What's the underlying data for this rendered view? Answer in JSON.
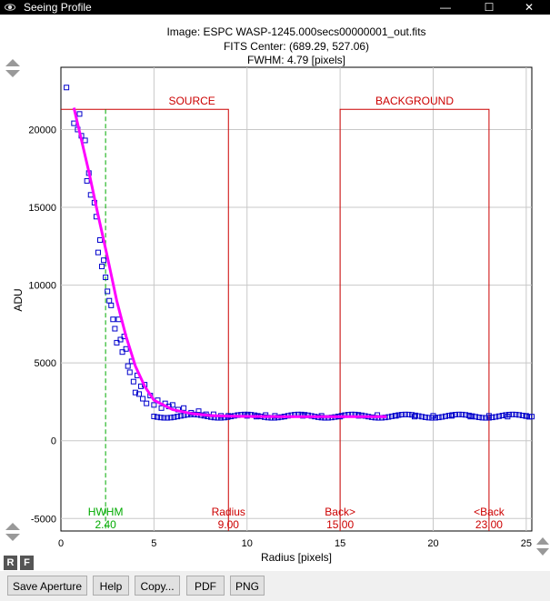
{
  "window": {
    "title": "Seeing Profile",
    "minimize": "—",
    "maximize": "☐",
    "close": "✕"
  },
  "header": {
    "image": "Image: ESPC WASP-1245.000secs00000001_out.fits",
    "center": "FITS Center: (689.29,  527.06)",
    "fwhm": "FWHM: 4.79 [pixels]"
  },
  "rf_labels": {
    "r": "R",
    "f": "F"
  },
  "buttons": {
    "save": "Save Aperture",
    "help": "Help",
    "copy": "Copy...",
    "pdf": "PDF",
    "png": "PNG"
  },
  "colors": {
    "points": "#0000cc",
    "fit": "#ff00ff",
    "aperture": "#cc0000",
    "hwhm": "#00aa00"
  },
  "chart_data": {
    "type": "scatter",
    "xlabel": "Radius [pixels]",
    "ylabel": "ADU",
    "xlim": [
      0,
      25.3
    ],
    "ylim": [
      -5800,
      24000
    ],
    "xticks": [
      0,
      5,
      10,
      15,
      20,
      25
    ],
    "yticks": [
      -5000,
      0,
      5000,
      10000,
      15000,
      20000
    ],
    "grid": true,
    "series": [
      {
        "kind": "points",
        "x": [
          0.3,
          0.7,
          0.9,
          1.0,
          1.1,
          1.3,
          1.4,
          1.5,
          1.6,
          1.8,
          1.9,
          2.0,
          2.1,
          2.2,
          2.3,
          2.4,
          2.5,
          2.6,
          2.7,
          2.8,
          2.9,
          3.0,
          3.1,
          3.2,
          3.3,
          3.4,
          3.5,
          3.6,
          3.7,
          3.8,
          3.9,
          4.0,
          4.1,
          4.2,
          4.3,
          4.4,
          4.5,
          4.6,
          4.8,
          5.0,
          5.2,
          5.4,
          5.6,
          5.8,
          6.0,
          6.3,
          6.6,
          7.0,
          7.4,
          7.8,
          8.2,
          8.6,
          9.0,
          9.5,
          10,
          10.5,
          11,
          11.5,
          12,
          13,
          14,
          15,
          16,
          17,
          18,
          19,
          20,
          21,
          22,
          23,
          24,
          25,
          25.3
        ],
        "y": [
          22700,
          20400,
          20000,
          21000,
          19600,
          19300,
          16700,
          17200,
          15800,
          15300,
          14400,
          12100,
          12900,
          11200,
          11600,
          10500,
          9600,
          9000,
          8700,
          7800,
          7200,
          6300,
          7800,
          6500,
          5700,
          6700,
          5900,
          4800,
          4400,
          5100,
          3800,
          3100,
          4200,
          3000,
          3500,
          2700,
          3600,
          2400,
          2900,
          2300,
          2600,
          2100,
          2400,
          2200,
          2300,
          2000,
          2100,
          1800,
          1900,
          1700,
          1700,
          1600,
          1600,
          1650,
          1600,
          1550,
          1650,
          1600,
          1550,
          1600,
          1600,
          1550,
          1600,
          1650,
          1600,
          1550,
          1600,
          1600,
          1550,
          1600,
          1550,
          1600,
          1550
        ]
      },
      {
        "kind": "fit",
        "x": [
          0.7,
          1.5,
          2.0,
          2.5,
          3.0,
          3.5,
          4.0,
          4.5,
          5.0,
          6.0,
          7.0,
          8.0,
          9.0,
          10,
          12,
          15,
          17.5
        ],
        "y": [
          21400,
          17300,
          14500,
          11800,
          9000,
          6700,
          4800,
          3500,
          2600,
          2000,
          1750,
          1620,
          1580,
          1560,
          1550,
          1550,
          1550
        ]
      }
    ],
    "apertures": [
      {
        "label": "HWHM",
        "value": "2.40",
        "x": 2.4
      },
      {
        "label": "Radius",
        "value": "9.00",
        "x": 9.0
      },
      {
        "label": "Back>",
        "value": "15.00",
        "x": 15.0
      },
      {
        "label": "<Back",
        "value": "23.00",
        "x": 23.0
      }
    ],
    "region_labels": {
      "source": "SOURCE",
      "background": "BACKGROUND"
    },
    "region_top": 21300
  }
}
